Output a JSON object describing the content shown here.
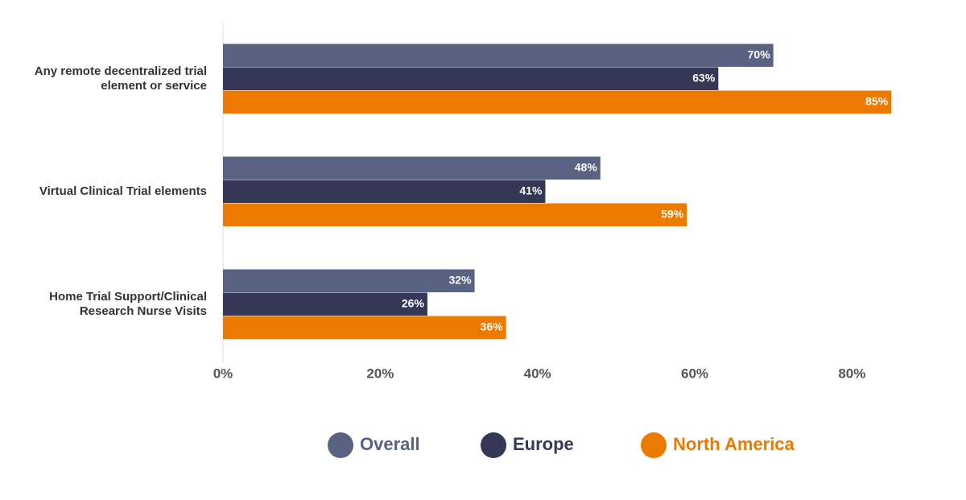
{
  "chart_data": {
    "type": "bar",
    "orientation": "horizontal",
    "categories": [
      "Any remote decentralized trial element or service",
      "Virtual Clinical Trial elements",
      "Home Trial Support/Clinical Research Nurse Visits"
    ],
    "series": [
      {
        "name": "Overall",
        "color": "#5a6282",
        "values": [
          70,
          48,
          32
        ],
        "value_labels": [
          "70%",
          "48%",
          "32%"
        ]
      },
      {
        "name": "Europe",
        "color": "#343856",
        "values": [
          63,
          41,
          26
        ],
        "value_labels": [
          "63%",
          "41%",
          "26%"
        ]
      },
      {
        "name": "North America",
        "color": "#ec7a00",
        "values": [
          85,
          59,
          36
        ],
        "value_labels": [
          "85%",
          "59%",
          "36%"
        ]
      }
    ],
    "xlim": [
      0,
      90
    ],
    "xticks": [
      {
        "value": 0,
        "label": "0%"
      },
      {
        "value": 20,
        "label": "20%"
      },
      {
        "value": 40,
        "label": "40%"
      },
      {
        "value": 60,
        "label": "60%"
      },
      {
        "value": 80,
        "label": "80%"
      }
    ],
    "legend": "bottom",
    "grid": false
  }
}
